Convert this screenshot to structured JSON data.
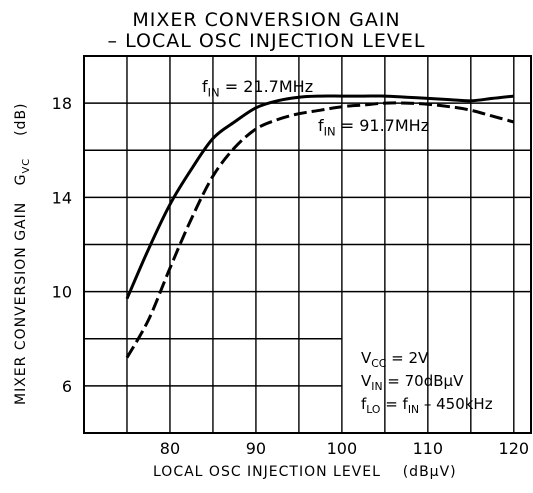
{
  "chart_data": {
    "type": "line",
    "title": "MIXER CONVERSION GAIN",
    "subtitle": "– LOCAL OSC INJECTION LEVEL",
    "xlabel": "LOCAL OSC INJECTION LEVEL",
    "xunit": "(dBμV)",
    "ylabel": "MIXER CONVERSION GAIN",
    "ysymbol": "G",
    "ysymbol_sub": "VC",
    "yunit": "(dB)",
    "xlim": [
      70,
      122
    ],
    "ylim": [
      4,
      20
    ],
    "xticks": [
      80,
      90,
      100,
      110,
      120
    ],
    "yticks": [
      6,
      10,
      14,
      18
    ],
    "grid": true,
    "series": [
      {
        "name_prefix": "f",
        "name_sub": "IN",
        "name_value": " = 21.7MHz",
        "style": "solid",
        "x": [
          75,
          77.5,
          80,
          82.5,
          85,
          87.5,
          90,
          92.5,
          95,
          97.5,
          100,
          102.5,
          105,
          107.5,
          110,
          112.5,
          115,
          117.5,
          120
        ],
        "y": [
          9.7,
          11.8,
          13.7,
          15.2,
          16.5,
          17.2,
          17.8,
          18.1,
          18.25,
          18.3,
          18.3,
          18.3,
          18.3,
          18.25,
          18.2,
          18.15,
          18.1,
          18.2,
          18.3
        ]
      },
      {
        "name_prefix": "f",
        "name_sub": "IN",
        "name_value": " = 91.7MHz",
        "style": "dashed",
        "x": [
          75,
          77.5,
          80,
          82.5,
          85,
          87.5,
          90,
          92.5,
          95,
          97.5,
          100,
          102.5,
          105,
          107.5,
          110,
          112.5,
          115,
          117.5,
          120
        ],
        "y": [
          7.2,
          8.8,
          11.0,
          13.1,
          14.9,
          16.1,
          16.9,
          17.3,
          17.55,
          17.7,
          17.85,
          17.92,
          18.0,
          18.0,
          17.95,
          17.85,
          17.7,
          17.45,
          17.2
        ]
      }
    ],
    "annotations": [
      {
        "prefix": "V",
        "sub": "CC",
        "value": " = 2V"
      },
      {
        "prefix": "V",
        "sub": "IN",
        "value": " = 70dBμV"
      },
      {
        "prefix": "f",
        "sub": "LO",
        "value": " = f",
        "sub2": "IN",
        "value2": " – 450kHz"
      }
    ]
  }
}
